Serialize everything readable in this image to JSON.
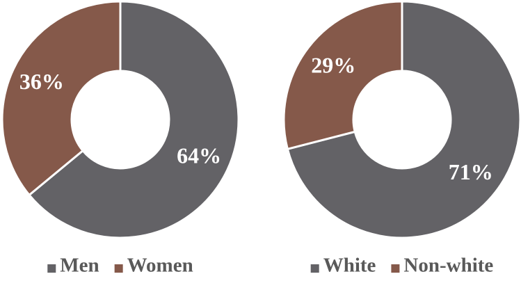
{
  "chart_data": [
    {
      "type": "pie",
      "categories": [
        "Men",
        "Women"
      ],
      "values": [
        64,
        36
      ],
      "value_labels": [
        "64%",
        "36%"
      ],
      "colors": [
        "#636266",
        "#85594a"
      ]
    },
    {
      "type": "pie",
      "categories": [
        "White",
        "Non-white"
      ],
      "values": [
        71,
        29
      ],
      "value_labels": [
        "71%",
        "29%"
      ],
      "colors": [
        "#636266",
        "#85594a"
      ]
    }
  ]
}
